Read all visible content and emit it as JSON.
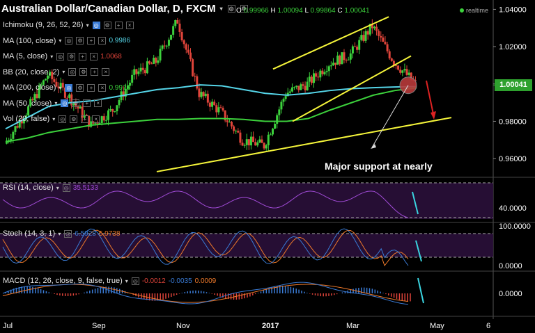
{
  "header": {
    "title": "Australian Dollar/Canadian Dollar, D, FXCM",
    "ohlc": {
      "o_label": "O",
      "o": "0.99966",
      "h_label": "H",
      "h": "1.00094",
      "l_label": "L",
      "l": "0.99864",
      "c_label": "C",
      "c": "1.00041"
    },
    "realtime": "realtime"
  },
  "indicators": [
    {
      "label": "Ichimoku (9, 26, 52, 26)",
      "value": ""
    },
    {
      "label": "MA (100, close)",
      "value": "0.9986",
      "color": "#55d5e8"
    },
    {
      "label": "MA (5, close)",
      "value": "1.0068",
      "color": "#e0443a"
    },
    {
      "label": "BB (20, close, 2)",
      "value": ""
    },
    {
      "label": "MA (200, close)",
      "value": "0.9979",
      "color": "#3cd13c"
    },
    {
      "label": "MA (50, close)",
      "value": ""
    },
    {
      "label": "Vol (20, false)",
      "value": ""
    }
  ],
  "annotation": "Major support at nearly",
  "current_price_label": "1.00041",
  "panes": {
    "rsi": {
      "label": "RSI (14, close)",
      "value": "35.5133"
    },
    "stoch": {
      "label": "Stoch (14, 3, 1)",
      "k": "6.5928",
      "d": "5.9738"
    },
    "macd": {
      "label": "MACD (12, 26, close, 9, false, true)",
      "hist": "-0.0012",
      "macd": "-0.0035",
      "signal": "0.0009"
    }
  },
  "chart_data": {
    "type": "line",
    "title": "Australian Dollar/Canadian Dollar, D, FXCM",
    "x": [
      "2016-07-01",
      "2016-07-15",
      "2016-08-01",
      "2016-08-15",
      "2016-09-01",
      "2016-09-15",
      "2016-10-01",
      "2016-10-15",
      "2016-11-01",
      "2016-11-15",
      "2016-12-01",
      "2016-12-15",
      "2017-01-01",
      "2016-01-15",
      "2017-02-01",
      "2017-02-15",
      "2017-03-01",
      "2017-03-15",
      "2017-04-01",
      "2017-04-15"
    ],
    "series": [
      {
        "name": "Price",
        "values": [
          0.968,
          0.985,
          1.005,
          0.993,
          0.978,
          0.986,
          1.005,
          1.012,
          1.034,
          0.995,
          0.985,
          0.97,
          0.967,
          0.995,
          1.0,
          1.011,
          1.016,
          1.031,
          1.012,
          1.0
        ]
      },
      {
        "name": "MA (100, close)",
        "values": [
          0.976,
          0.982,
          0.988,
          0.99,
          0.991,
          0.993,
          0.995,
          0.997,
          0.998,
          0.9995,
          0.999,
          0.997,
          0.995,
          0.994,
          0.995,
          0.9965,
          0.9975,
          0.998,
          0.9984,
          0.9986
        ]
      },
      {
        "name": "MA (200, close)",
        "values": [
          0.969,
          0.971,
          0.974,
          0.976,
          0.978,
          0.979,
          0.98,
          0.981,
          0.981,
          0.9815,
          0.9815,
          0.981,
          0.98,
          0.98,
          0.9815,
          0.986,
          0.99,
          0.994,
          0.9965,
          0.9979
        ]
      }
    ],
    "y_axis": {
      "ticks": [
        "1.04000",
        "1.02000",
        "1.00000",
        "0.98000",
        "0.96000"
      ],
      "ylim": [
        0.95,
        1.045
      ]
    },
    "x_ticks": [
      "Jul",
      "Sep",
      "Nov",
      "2017",
      "Mar",
      "May",
      "6"
    ],
    "current_price": 1.00041,
    "rsi": {
      "ticks": [
        "40.0000"
      ],
      "last": 35.5133
    },
    "stoch": {
      "ticks": [
        "100.0000",
        "0.0000"
      ],
      "k": 6.5928,
      "d": 5.9738
    },
    "macd": {
      "ticks": [
        "0.0000"
      ],
      "histogram": -0.0012,
      "macd": -0.0035,
      "signal": 0.0009
    }
  },
  "colors": {
    "background": "#000000",
    "up": "#3cd13c",
    "down": "#e0443a",
    "ma100": "#55d5e8",
    "ma200": "#3cd13c",
    "trend": "#f5f53a",
    "rsi": "#a04bd6",
    "stoch_k": "#3a7bd5",
    "stoch_d": "#f07a2a"
  }
}
